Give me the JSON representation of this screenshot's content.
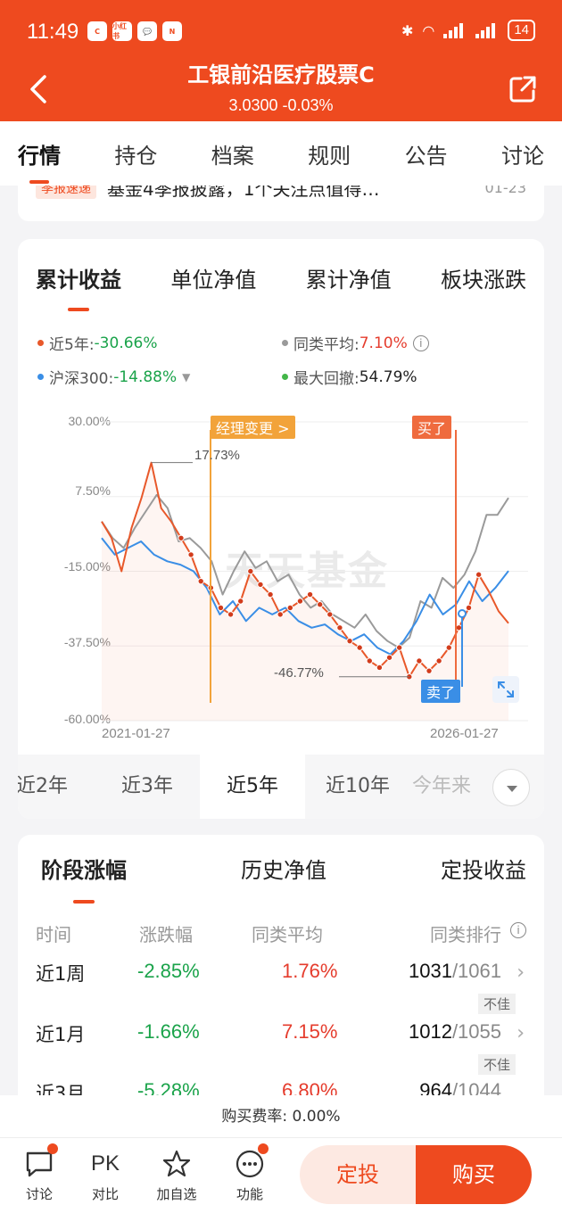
{
  "status_bar": {
    "time": "11:49",
    "apps": [
      "C",
      "小红书",
      "💬",
      "N"
    ],
    "signal": "4G",
    "battery": "14"
  },
  "header": {
    "title": "工银前沿医疗股票C",
    "nav": "3.0300 -0.03%",
    "back_icon": "chevron-left-icon",
    "share_icon": "share-icon"
  },
  "main_tabs": [
    "行情",
    "持仓",
    "档案",
    "规则",
    "公告",
    "讨论"
  ],
  "news": {
    "tag": "季报速递",
    "text": "基金4季报披露，1个关注点值得…",
    "date": "01-23"
  },
  "chart_tabs": [
    "累计收益",
    "单位净值",
    "累计净值",
    "板块涨跌"
  ],
  "legend": {
    "fund_label": "近5年:",
    "fund_value": "-30.66%",
    "avg_label": "同类平均:",
    "avg_value": "7.10%",
    "index_label": "沪深300:",
    "index_value": "-14.88%",
    "dd_label": "最大回撤:",
    "dd_value": "54.79%"
  },
  "colors": {
    "accent": "#ee4a1f",
    "fund": "#e8582a",
    "average": "#9a9a9a",
    "index": "#3a8ee6",
    "drawdown": "#43b649",
    "negative": "#1aa34a",
    "positive": "#e53c2d"
  },
  "chart_data": {
    "type": "line",
    "x_range": [
      "2021-01-27",
      "2026-01-27"
    ],
    "ylim": [
      -60,
      30
    ],
    "yticks": [
      "30.00%",
      "7.50%",
      "-15.00%",
      "-37.50%",
      "-60.00%"
    ],
    "xticks": [
      "2021-01-27",
      "2026-01-27"
    ],
    "series": [
      {
        "name": "近5年",
        "values": [
          0,
          -5,
          -15,
          -2,
          7,
          17.73,
          4,
          0,
          -5,
          -10,
          -18,
          -20,
          -26,
          -28,
          -24,
          -15,
          -19,
          -22,
          -28,
          -26,
          -24,
          -22,
          -25,
          -28,
          -32,
          -36,
          -38,
          -42,
          -44,
          -41,
          -38,
          -46.77,
          -42,
          -45,
          -42,
          -38,
          -32,
          -26,
          -16,
          -21,
          -27,
          -30.66
        ]
      },
      {
        "name": "同类平均",
        "values": [
          0,
          -5,
          -8,
          -2,
          3,
          8,
          4,
          -6,
          -5,
          -8,
          -12,
          -22,
          -15,
          -9,
          -14,
          -12,
          -18,
          -16,
          -22,
          -26,
          -24,
          -28,
          -30,
          -32,
          -28,
          -33,
          -36,
          -38,
          -35,
          -24,
          -26,
          -17,
          -20,
          -16,
          -9,
          2,
          2,
          7.1
        ]
      },
      {
        "name": "沪深300",
        "values": [
          -5,
          -10,
          -8,
          -6,
          -10,
          -12,
          -13,
          -15,
          -20,
          -28,
          -24,
          -30,
          -26,
          -28,
          -26,
          -30,
          -32,
          -31,
          -34,
          -36,
          -34,
          -38,
          -40,
          -36,
          -30,
          -22,
          -28,
          -25,
          -18,
          -24,
          -20,
          -14.88
        ]
      }
    ],
    "annotations": {
      "max_label": "17.73%",
      "min_label": "-46.77%",
      "manager_change": "经理变更 >",
      "buy": "买了",
      "sell": "卖了"
    }
  },
  "watermark": "天天基金",
  "range_tabs": [
    "近2年",
    "近3年",
    "近5年",
    "近10年",
    "今年来"
  ],
  "range_active": 2,
  "stage_tabs": [
    "阶段涨幅",
    "历史净值",
    "定投收益"
  ],
  "table": {
    "headers": [
      "时间",
      "涨跌幅",
      "同类平均",
      "同类排行"
    ],
    "rows": [
      {
        "period": "近1周",
        "change": "-2.85%",
        "avg": "1.76%",
        "rank": "1031",
        "total": "/1061",
        "badge": "不佳"
      },
      {
        "period": "近1月",
        "change": "-1.66%",
        "avg": "7.15%",
        "rank": "1012",
        "total": "/1055",
        "badge": "不佳"
      },
      {
        "period": "近3月",
        "change": "-5.28%",
        "avg": "6.80%",
        "rank": "964",
        "total": "/1044",
        "badge": ""
      }
    ]
  },
  "fee": "购买费率: 0.00%",
  "bottom": {
    "discuss": "讨论",
    "compare_icon_text": "PK",
    "compare": "对比",
    "watch": "加自选",
    "func": "功能",
    "dingtou": "定投",
    "buy": "购买"
  }
}
